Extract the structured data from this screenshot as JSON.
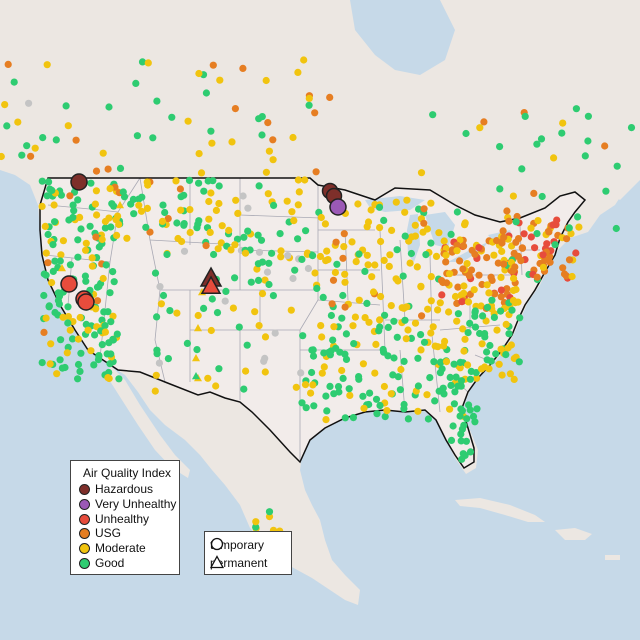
{
  "legend": {
    "title": "Air Quality Index",
    "categories": [
      {
        "label": "Hazardous",
        "color": "#7e2f2a"
      },
      {
        "label": "Very Unhealthy",
        "color": "#9b59b6"
      },
      {
        "label": "Unhealthy",
        "color": "#e74c3c"
      },
      {
        "label": "USG",
        "color": "#e67e22"
      },
      {
        "label": "Moderate",
        "color": "#f1c40f"
      },
      {
        "label": "Good",
        "color": "#2ecc71"
      }
    ]
  },
  "monitor_types": {
    "items": [
      {
        "label": "temporary",
        "symbol": "circle-icon"
      },
      {
        "label": "permanent",
        "symbol": "triangle-icon"
      }
    ]
  },
  "colors": {
    "ocean": "#c6d9e8",
    "land": "#ece7e2",
    "us_land": "#f2ecea",
    "lakes": "#c6d9e8",
    "no_data": "#c4c4c4"
  }
}
